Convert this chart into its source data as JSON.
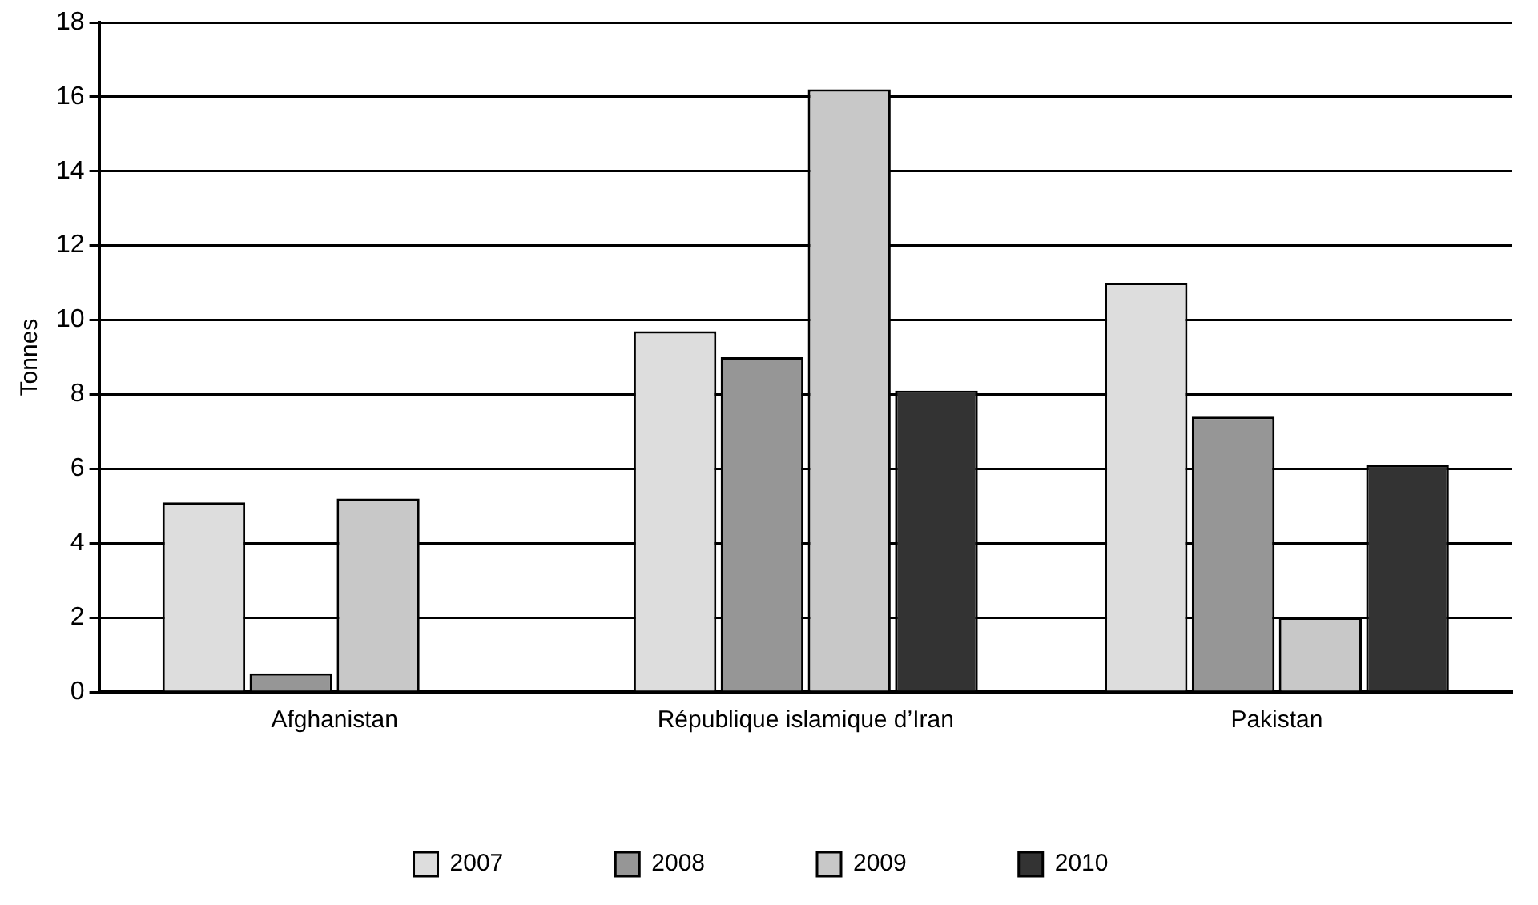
{
  "chart_data": {
    "type": "bar",
    "ylabel": "Tonnes",
    "categories": [
      "Afghanistan",
      "République islamique d’Iran",
      "Pakistan"
    ],
    "series": [
      {
        "name": "2007",
        "color": "#dddddd",
        "values": [
          5.1,
          9.7,
          11.0
        ]
      },
      {
        "name": "2008",
        "color": "#969696",
        "values": [
          0.5,
          9.0,
          7.4
        ]
      },
      {
        "name": "2009",
        "color": "#c8c8c8",
        "values": [
          5.2,
          16.2,
          2.0
        ]
      },
      {
        "name": "2010",
        "color": "#333333",
        "values": [
          null,
          8.1,
          6.1
        ]
      }
    ],
    "ylim": [
      0,
      18
    ],
    "yticks": [
      0,
      2,
      4,
      6,
      8,
      10,
      12,
      14,
      16,
      18
    ],
    "grid": "y",
    "legend": "bottom"
  }
}
